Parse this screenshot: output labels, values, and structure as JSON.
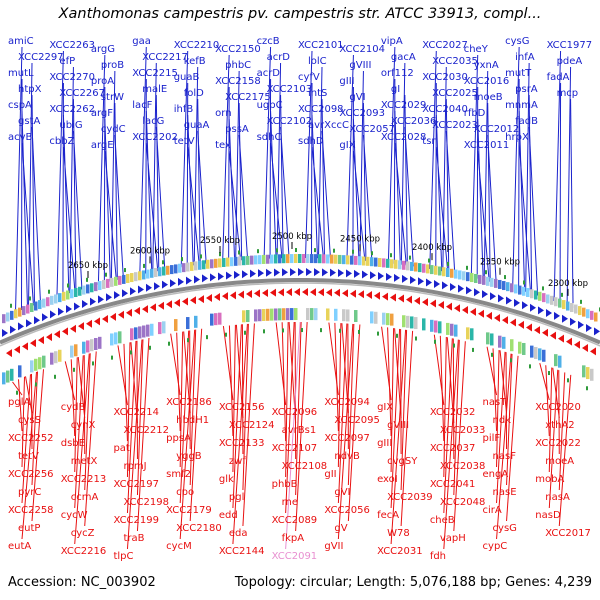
{
  "title": "Xanthomonas campestris pv. campestris str. ATCC 33913, compl...",
  "footer": {
    "accession": "Accession: NC_003902",
    "topology": "Topology: circular; Length: 5,076,188 bp; Genes: 4,239"
  },
  "colors": {
    "forward_strand": "#1a22cc",
    "reverse_strand": "#e81010",
    "highlight_gene": "#e88fd0",
    "tick_green": "#2e9a3a",
    "backbone": "#888888"
  },
  "kbp_ticks": [
    "2650 kbp",
    "2600 kbp",
    "2550 kbp",
    "2500 kbp",
    "2450 kbp",
    "2400 kbp",
    "2350 kbp",
    "2300 kbp"
  ],
  "top_labels": [
    {
      "t": "amiC"
    },
    {
      "t": "XCC2297"
    },
    {
      "t": "mutL"
    },
    {
      "t": "htpX"
    },
    {
      "t": "cspA"
    },
    {
      "t": "gstA"
    },
    {
      "t": "acvB"
    },
    {
      "t": "XCC2263"
    },
    {
      "t": "efP"
    },
    {
      "t": "XCC2270"
    },
    {
      "t": "XCC2267"
    },
    {
      "t": "XCC2262"
    },
    {
      "t": "ubiG"
    },
    {
      "t": "cbbZ"
    },
    {
      "t": "argG"
    },
    {
      "t": "proB"
    },
    {
      "t": "proA"
    },
    {
      "t": "strW"
    },
    {
      "t": "argF"
    },
    {
      "t": "cydC"
    },
    {
      "t": "argE"
    },
    {
      "t": "gaa"
    },
    {
      "t": "XCC2217"
    },
    {
      "t": "XCC2215"
    },
    {
      "t": "malE"
    },
    {
      "t": "lacF"
    },
    {
      "t": "lacG"
    },
    {
      "t": "XCC2202"
    },
    {
      "t": "XCC2210"
    },
    {
      "t": "kefB"
    },
    {
      "t": "guaB"
    },
    {
      "t": "folD"
    },
    {
      "t": "ihfB"
    },
    {
      "t": "guaA"
    },
    {
      "t": "tetV"
    },
    {
      "t": "XCC2150"
    },
    {
      "t": "phbC"
    },
    {
      "t": "XCC2158"
    },
    {
      "t": "XCC2175"
    },
    {
      "t": "orn"
    },
    {
      "t": "pssA"
    },
    {
      "t": "tex"
    },
    {
      "t": "czcB"
    },
    {
      "t": "acrD"
    },
    {
      "t": "acrD"
    },
    {
      "t": "XCC2103"
    },
    {
      "t": "ugpC"
    },
    {
      "t": "XCC2102"
    },
    {
      "t": "sdhC"
    },
    {
      "t": "XCC2101"
    },
    {
      "t": "lolC"
    },
    {
      "t": "cyfV"
    },
    {
      "t": "intS"
    },
    {
      "t": "XCC2098"
    },
    {
      "t": "avrXccC"
    },
    {
      "t": "sdhD"
    },
    {
      "t": "XCC2104"
    },
    {
      "t": "gVIII"
    },
    {
      "t": "gIII"
    },
    {
      "t": "gVI"
    },
    {
      "t": "XCC2093"
    },
    {
      "t": "XCC2057"
    },
    {
      "t": "gIX"
    },
    {
      "t": "vipA"
    },
    {
      "t": "gacA"
    },
    {
      "t": "orf112"
    },
    {
      "t": "gI"
    },
    {
      "t": "XCC2029"
    },
    {
      "t": "XCC2036"
    },
    {
      "t": "XCC2028"
    },
    {
      "t": "XCC2027"
    },
    {
      "t": "XCC2035"
    },
    {
      "t": "XCC2030"
    },
    {
      "t": "XCC2025"
    },
    {
      "t": "XCC2040"
    },
    {
      "t": "XCC2023"
    },
    {
      "t": "tsr"
    },
    {
      "t": "cheY"
    },
    {
      "t": "yxnA"
    },
    {
      "t": "XCC2016"
    },
    {
      "t": "moeB"
    },
    {
      "t": "rfbD"
    },
    {
      "t": "XCC2012"
    },
    {
      "t": "XCC2011"
    },
    {
      "t": "cysG"
    },
    {
      "t": "infA"
    },
    {
      "t": "mutT"
    },
    {
      "t": "psrA"
    },
    {
      "t": "mnmA"
    },
    {
      "t": "fadB"
    },
    {
      "t": "hrpX"
    },
    {
      "t": "XCC1977"
    },
    {
      "t": "pdeA"
    },
    {
      "t": "fadA"
    },
    {
      "t": "mcp"
    }
  ],
  "bottom_labels": [
    {
      "t": "pglA"
    },
    {
      "t": "cysS"
    },
    {
      "t": "XCC2252"
    },
    {
      "t": "tetV"
    },
    {
      "t": "XCC2256"
    },
    {
      "t": "pyrC"
    },
    {
      "t": "XCC2258"
    },
    {
      "t": "eutP"
    },
    {
      "t": "eutA"
    },
    {
      "t": "cydB"
    },
    {
      "t": "cynX"
    },
    {
      "t": "dsbE"
    },
    {
      "t": "metX"
    },
    {
      "t": "XCC2213"
    },
    {
      "t": "ccmA"
    },
    {
      "t": "cycW"
    },
    {
      "t": "cycZ"
    },
    {
      "t": "XCC2216"
    },
    {
      "t": "XCC2214"
    },
    {
      "t": "XCC2212"
    },
    {
      "t": "pat"
    },
    {
      "t": "rpmJ"
    },
    {
      "t": "XCC2197"
    },
    {
      "t": "XCC2198"
    },
    {
      "t": "XCC2199"
    },
    {
      "t": "traB"
    },
    {
      "t": "tlpC"
    },
    {
      "t": "XCC2186"
    },
    {
      "t": "hbdH1"
    },
    {
      "t": "ppsA"
    },
    {
      "t": "yggB"
    },
    {
      "t": "smf2"
    },
    {
      "t": "cpo"
    },
    {
      "t": "XCC2179"
    },
    {
      "t": "XCC2180"
    },
    {
      "t": "cycM"
    },
    {
      "t": "XCC2156"
    },
    {
      "t": "XCC2124"
    },
    {
      "t": "XCC2133"
    },
    {
      "t": "zwf"
    },
    {
      "t": "glk"
    },
    {
      "t": "pgl"
    },
    {
      "t": "edd"
    },
    {
      "t": "eda"
    },
    {
      "t": "XCC2144"
    },
    {
      "t": "XCC2096"
    },
    {
      "t": "avrBs1"
    },
    {
      "t": "XCC2107"
    },
    {
      "t": "XCC2108"
    },
    {
      "t": "phbB"
    },
    {
      "t": "rne"
    },
    {
      "t": "XCC2089"
    },
    {
      "t": "fkpA"
    },
    {
      "t": "XCC2091"
    },
    {
      "t": "XCC2094"
    },
    {
      "t": "XCC2095"
    },
    {
      "t": "XCC2097"
    },
    {
      "t": "ndvB"
    },
    {
      "t": "gII"
    },
    {
      "t": "gVI"
    },
    {
      "t": "XCC2056"
    },
    {
      "t": "gV"
    },
    {
      "t": "gVII"
    },
    {
      "t": "gIX"
    },
    {
      "t": "gVIII"
    },
    {
      "t": "gIII"
    },
    {
      "t": "cvgSY"
    },
    {
      "t": "exoI"
    },
    {
      "t": "XCC2039"
    },
    {
      "t": "fecA"
    },
    {
      "t": "W78"
    },
    {
      "t": "XCC2031"
    },
    {
      "t": "XCC2032"
    },
    {
      "t": "XCC2033"
    },
    {
      "t": "XCC2037"
    },
    {
      "t": "XCC2038"
    },
    {
      "t": "XCC2041"
    },
    {
      "t": "XCC2048"
    },
    {
      "t": "cheB"
    },
    {
      "t": "vapH"
    },
    {
      "t": "fdh"
    },
    {
      "t": "nasT"
    },
    {
      "t": "ndk"
    },
    {
      "t": "pilF"
    },
    {
      "t": "nasF"
    },
    {
      "t": "engA"
    },
    {
      "t": "nasE"
    },
    {
      "t": "cirA"
    },
    {
      "t": "cysG"
    },
    {
      "t": "cypC"
    },
    {
      "t": "XCC2020"
    },
    {
      "t": "xthA2"
    },
    {
      "t": "XCC2022"
    },
    {
      "t": "moeA"
    },
    {
      "t": "mobA"
    },
    {
      "t": "nasA"
    },
    {
      "t": "nasD"
    },
    {
      "t": "XCC2017"
    }
  ]
}
